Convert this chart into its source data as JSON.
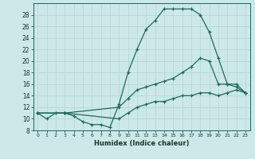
{
  "xlabel": "Humidex (Indice chaleur)",
  "background_color": "#cce8e8",
  "grid_color": "#b8d8d8",
  "line_color": "#1a6b5a",
  "xlim": [
    -0.5,
    23.5
  ],
  "ylim": [
    8,
    30
  ],
  "x_ticks": [
    0,
    1,
    2,
    3,
    4,
    5,
    6,
    7,
    8,
    9,
    10,
    11,
    12,
    13,
    14,
    15,
    16,
    17,
    18,
    19,
    20,
    21,
    22,
    23
  ],
  "y_ticks": [
    8,
    10,
    12,
    14,
    16,
    18,
    20,
    22,
    24,
    26,
    28
  ],
  "line1_x": [
    0,
    1,
    2,
    3,
    4,
    5,
    6,
    7,
    8,
    9,
    10,
    11,
    12,
    13,
    14,
    15,
    16,
    17,
    18,
    19,
    20,
    21,
    22,
    23
  ],
  "line1_y": [
    11,
    10,
    11,
    11,
    10.5,
    9.5,
    9,
    9,
    8.5,
    12.5,
    18,
    22,
    25.5,
    27,
    29,
    29,
    29,
    29,
    28,
    25,
    20.5,
    16,
    16,
    14.5
  ],
  "line2_x": [
    0,
    3,
    9,
    10,
    11,
    12,
    13,
    14,
    15,
    16,
    17,
    18,
    19,
    20,
    21,
    22,
    23
  ],
  "line2_y": [
    11,
    11,
    12,
    13.5,
    15,
    15.5,
    16,
    16.5,
    17,
    18,
    19,
    20.5,
    20,
    16,
    16,
    15.5,
    14.5
  ],
  "line3_x": [
    0,
    3,
    9,
    10,
    11,
    12,
    13,
    14,
    15,
    16,
    17,
    18,
    19,
    20,
    21,
    22,
    23
  ],
  "line3_y": [
    11,
    11,
    10,
    11,
    12,
    12.5,
    13,
    13,
    13.5,
    14,
    14,
    14.5,
    14.5,
    14,
    14.5,
    15,
    14.5
  ]
}
